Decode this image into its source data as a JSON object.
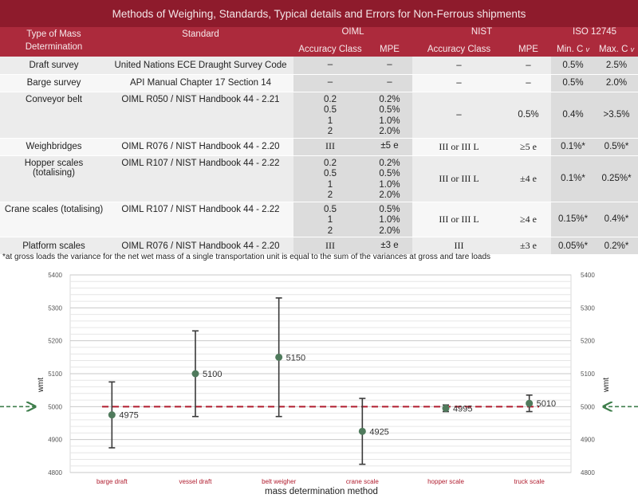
{
  "table": {
    "title": "Methods of Weighing, Standards, Typical details and Errors for Non-Ferrous shipments",
    "header": {
      "type_label": "Type of Mass Determination",
      "standard_label": "Standard",
      "oiml_label": "OIML",
      "nist_label": "NIST",
      "iso_label": "ISO 12745",
      "accuracy_class": "Accuracy Class",
      "mpe": "MPE",
      "min_cv": "Min. C",
      "max_cv": "Max. C",
      "cv_sub": "v"
    },
    "rows": [
      {
        "type": "Draft survey",
        "standard": "United Nations ECE Draught Survey Code",
        "oiml_class": [
          "–"
        ],
        "oiml_mpe": [
          "–"
        ],
        "nist_class": "–",
        "nist_mpe": "–",
        "min_cv": "0.5%",
        "max_cv": "2.5%"
      },
      {
        "type": "Barge survey",
        "standard": "API Manual Chapter 17 Section 14",
        "oiml_class": [
          "–"
        ],
        "oiml_mpe": [
          "–"
        ],
        "nist_class": "–",
        "nist_mpe": "–",
        "min_cv": "0.5%",
        "max_cv": "2.0%"
      },
      {
        "type": "Conveyor belt",
        "standard": "OIML R050 / NIST Handbook 44 - 2.21",
        "oiml_class": [
          "0.2",
          "0.5",
          "1",
          "2"
        ],
        "oiml_mpe": [
          "0.2%",
          "0.5%",
          "1.0%",
          "2.0%"
        ],
        "nist_class": "–",
        "nist_mpe": "0.5%",
        "min_cv": "0.4%",
        "max_cv": ">3.5%"
      },
      {
        "type": "Weighbridges",
        "standard": "OIML R076 / NIST Handbook 44 - 2.20",
        "oiml_class": [
          "III"
        ],
        "oiml_mpe": [
          "±5 e"
        ],
        "nist_class": "III or III L",
        "nist_mpe": "≥5 e",
        "min_cv": "0.1%*",
        "max_cv": "0.5%*"
      },
      {
        "type": "Hopper scales (totalising)",
        "standard": "OIML R107 / NIST Handbook 44 - 2.22",
        "oiml_class": [
          "0.2",
          "0.5",
          "1",
          "2"
        ],
        "oiml_mpe": [
          "0.2%",
          "0.5%",
          "1.0%",
          "2.0%"
        ],
        "nist_class": "III or III L",
        "nist_mpe": "±4 e",
        "min_cv": "0.1%*",
        "max_cv": "0.25%*"
      },
      {
        "type": "Crane scales (totalising)",
        "standard": "OIML R107 / NIST Handbook 44 - 2.22",
        "oiml_class": [
          "0.5",
          "1",
          "2"
        ],
        "oiml_mpe": [
          "0.5%",
          "1.0%",
          "2.0%"
        ],
        "nist_class": "III or III L",
        "nist_mpe": "≥4 e",
        "min_cv": "0.15%*",
        "max_cv": "0.4%*"
      },
      {
        "type": "Platform scales",
        "standard": "OIML R076 / NIST Handbook 44 - 2.20",
        "oiml_class": [
          "III"
        ],
        "oiml_mpe": [
          "±3 e"
        ],
        "nist_class": "III",
        "nist_mpe": "±3 e",
        "min_cv": "0.05%*",
        "max_cv": "0.2%*"
      }
    ],
    "footnote": "*at gross loads the variance for the net wet mass of a single transportation unit is equal to the sum of the variances at gross and tare loads"
  },
  "chart_data": {
    "type": "scatter",
    "categories": [
      "barge draft",
      "vessel draft",
      "belt weigher",
      "crane scale",
      "hopper scale",
      "truck scale"
    ],
    "values": [
      4975,
      5100,
      5150,
      4925,
      4995,
      5010
    ],
    "error_low": [
      4875,
      4970,
      4970,
      4825,
      4985,
      4985
    ],
    "error_high": [
      5075,
      5230,
      5330,
      5025,
      5005,
      5035
    ],
    "reference_line": 5000,
    "xlabel": "mass determination method",
    "ylabel": "wmt",
    "ylim": [
      4800,
      5400
    ],
    "yticks": [
      4800,
      4900,
      5000,
      5100,
      5200,
      5300,
      5400
    ],
    "grid": true,
    "colors": {
      "point": "#4f7a5c",
      "error_bar": "#3a3a3a",
      "reference": "#b01c2e",
      "category_label": "#b01c2e",
      "arrow": "#3f7e4c",
      "title_bg": "#8e1b2c",
      "header_bg": "#ac2a3c"
    }
  }
}
